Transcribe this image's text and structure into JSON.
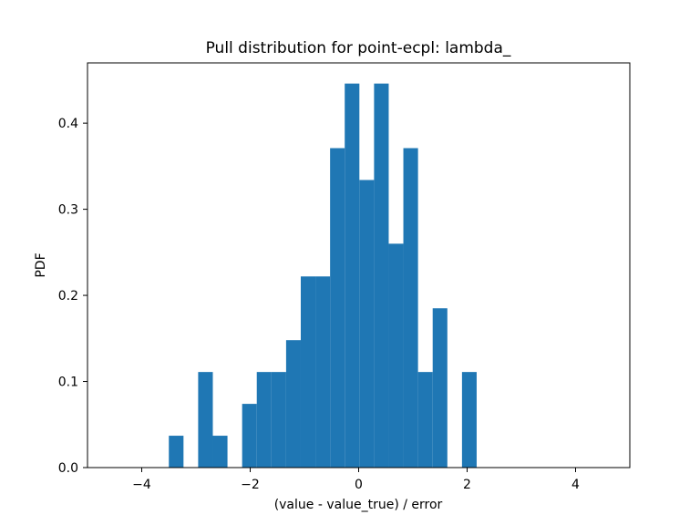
{
  "chart_data": {
    "type": "bar",
    "title": "Pull distribution for point-ecpl: lambda_",
    "xlabel": "(value - value_true) / error",
    "ylabel": "PDF",
    "xlim": [
      -5,
      5
    ],
    "ylim": [
      0,
      0.47
    ],
    "xticks": [
      -4,
      -2,
      0,
      2,
      4
    ],
    "xtick_labels": [
      "−4",
      "−2",
      "0",
      "2",
      "4"
    ],
    "yticks": [
      0.0,
      0.1,
      0.2,
      0.3,
      0.4
    ],
    "ytick_labels": [
      "0.0",
      "0.1",
      "0.2",
      "0.3",
      "0.4"
    ],
    "bin_width": 0.2703,
    "bins": [
      {
        "x0": -3.5,
        "value": 0.037
      },
      {
        "x0": -3.2297,
        "value": 0.0
      },
      {
        "x0": -2.9595,
        "value": 0.111
      },
      {
        "x0": -2.6892,
        "value": 0.037
      },
      {
        "x0": -2.4189,
        "value": 0.0
      },
      {
        "x0": -2.1486,
        "value": 0.074
      },
      {
        "x0": -1.8784,
        "value": 0.111
      },
      {
        "x0": -1.6081,
        "value": 0.111
      },
      {
        "x0": -1.3378,
        "value": 0.148
      },
      {
        "x0": -1.0676,
        "value": 0.222
      },
      {
        "x0": -0.7973,
        "value": 0.222
      },
      {
        "x0": -0.527,
        "value": 0.371
      },
      {
        "x0": -0.2568,
        "value": 0.446
      },
      {
        "x0": 0.0135,
        "value": 0.334
      },
      {
        "x0": 0.2838,
        "value": 0.446
      },
      {
        "x0": 0.5541,
        "value": 0.26
      },
      {
        "x0": 0.8243,
        "value": 0.371
      },
      {
        "x0": 1.0946,
        "value": 0.111
      },
      {
        "x0": 1.3649,
        "value": 0.185
      },
      {
        "x0": 1.6351,
        "value": 0.0
      },
      {
        "x0": 1.9054,
        "value": 0.111
      }
    ],
    "bar_color": "#1f77b4",
    "grid": false,
    "legend": "none"
  }
}
